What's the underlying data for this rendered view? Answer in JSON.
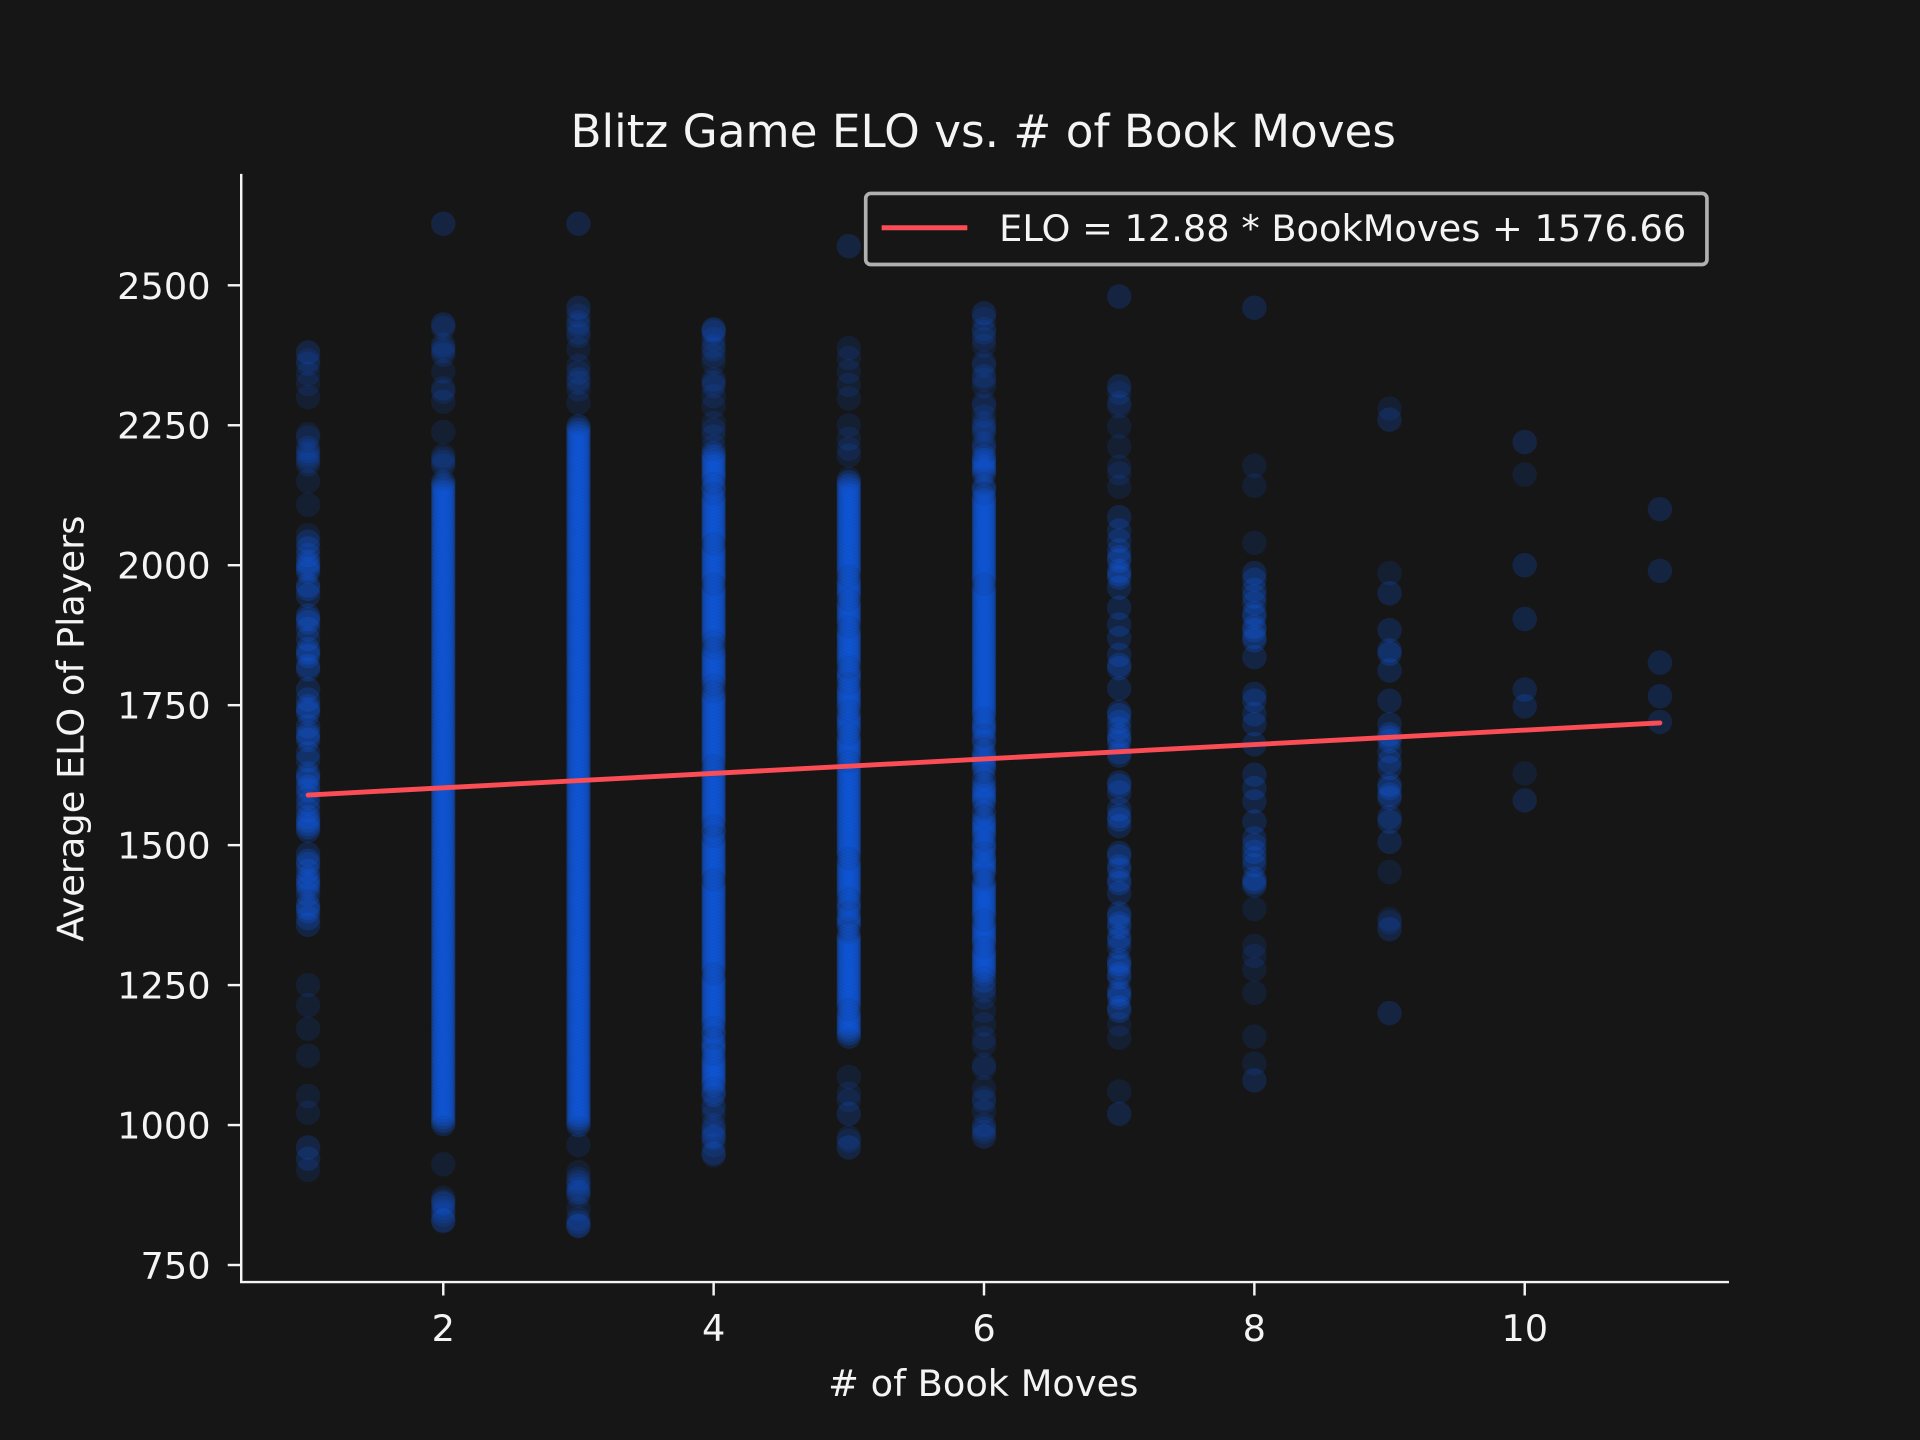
{
  "chart_data": {
    "type": "scatter",
    "title": "Blitz Game ELO vs. # of Book Moves",
    "xlabel": "# of Book Moves",
    "ylabel": "Average ELO of Players",
    "xlim": [
      0.5,
      11.5
    ],
    "ylim": [
      720,
      2660
    ],
    "x_ticks": [
      2,
      4,
      6,
      8,
      10
    ],
    "y_ticks": [
      750,
      1000,
      1250,
      1500,
      1750,
      2000,
      2250,
      2500
    ],
    "grid": false,
    "legend_position": "top-right",
    "colors": {
      "background": "#161616",
      "points": "#0f62fe",
      "fit_line": "#fa4d56",
      "text": "#f4f4f4"
    },
    "columns": [
      {
        "x": 1,
        "y_min": 920,
        "y_max": 2380,
        "dense_range": [
          1350,
          2050
        ],
        "density": 0.55,
        "outliers": [
          2380,
          940,
          960
        ]
      },
      {
        "x": 2,
        "y_min": 810,
        "y_max": 2430,
        "dense_range": [
          1000,
          2150
        ],
        "density": 1.0,
        "outliers": [
          2610,
          2430,
          830,
          860
        ]
      },
      {
        "x": 3,
        "y_min": 820,
        "y_max": 2460,
        "dense_range": [
          1000,
          2250
        ],
        "density": 1.0,
        "outliers": [
          2610,
          2460,
          820,
          880
        ]
      },
      {
        "x": 4,
        "y_min": 940,
        "y_max": 2430,
        "dense_range": [
          1050,
          2200
        ],
        "density": 0.9,
        "outliers": [
          2420,
          950,
          980
        ]
      },
      {
        "x": 5,
        "y_min": 960,
        "y_max": 2390,
        "dense_range": [
          1150,
          2150
        ],
        "density": 0.9,
        "outliers": [
          2570,
          960,
          1020
        ]
      },
      {
        "x": 6,
        "y_min": 970,
        "y_max": 2450,
        "dense_range": [
          1250,
          2200
        ],
        "density": 0.85,
        "outliers": [
          2450,
          980
        ]
      },
      {
        "x": 7,
        "y_min": 1000,
        "y_max": 2350,
        "dense_range": [
          1200,
          2100
        ],
        "density": 0.45,
        "outliers": [
          2480,
          2320,
          1020
        ]
      },
      {
        "x": 8,
        "y_min": 1080,
        "y_max": 2300,
        "dense_range": [
          1400,
          2000
        ],
        "density": 0.3,
        "outliers": [
          2460,
          1080,
          1500
        ]
      },
      {
        "x": 9,
        "y_min": 1200,
        "y_max": 2290,
        "dense_range": [
          1500,
          1950
        ],
        "density": 0.18,
        "outliers": [
          2260,
          1550,
          1350,
          1200
        ]
      },
      {
        "x": 10,
        "y_min": 1580,
        "y_max": 2230,
        "dense_range": [
          1650,
          2000
        ],
        "density": 0.08,
        "outliers": [
          2220,
          1580
        ]
      },
      {
        "x": 11,
        "y_min": 1700,
        "y_max": 2100,
        "dense_range": [
          1750,
          2000
        ],
        "density": 0.05,
        "outliers": [
          2100,
          1990,
          1720
        ]
      }
    ],
    "fit_line": {
      "slope": 12.88,
      "intercept": 1576.66,
      "x_range": [
        1,
        11
      ],
      "label": "ELO = 12.88 * BookMoves + 1576.66"
    }
  }
}
